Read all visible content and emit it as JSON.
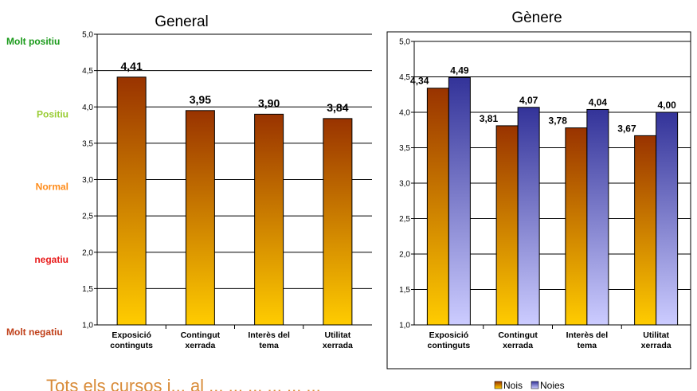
{
  "scale_labels": [
    {
      "text": "Molt positiu",
      "color": "#1a9a1a",
      "value": 5.0
    },
    {
      "text": "Positiu",
      "color": "#99cc33",
      "value": 4.0
    },
    {
      "text": "Normal",
      "color": "#ff8c1a",
      "value": 3.0
    },
    {
      "text": "negatiu",
      "color": "#e81c1c",
      "value": 2.0
    },
    {
      "text": "Molt negatiu",
      "color": "#c0401a",
      "value": 1.0
    }
  ],
  "caption": "Tots els cursos i... al ... ... ... ... ... ...",
  "chart_data": [
    {
      "type": "bar",
      "title": "General",
      "categories": [
        [
          "Exposició",
          "continguts"
        ],
        [
          "Contingut",
          "xerrada"
        ],
        [
          "Interès del",
          "tema"
        ],
        [
          "Utilitat",
          "xerrada"
        ]
      ],
      "tick_labels": [
        "1,0",
        "1,5",
        "2,0",
        "2,5",
        "3,0",
        "3,5",
        "4,0",
        "4,5",
        "5,0"
      ],
      "ylim": [
        1.0,
        5.0
      ],
      "grid": true,
      "series": [
        {
          "values": [
            4.41,
            3.95,
            3.9,
            3.84
          ],
          "labels": [
            "4,41",
            "3,95",
            "3,90",
            "3,84"
          ],
          "color_top": "#993300",
          "color_bottom": "#ffcc00"
        }
      ]
    },
    {
      "type": "bar",
      "title": "Gènere",
      "categories": [
        [
          "Exposició",
          "continguts"
        ],
        [
          "Contingut",
          "xerrada"
        ],
        [
          "Interès del",
          "tema"
        ],
        [
          "Utilitat",
          "xerrada"
        ]
      ],
      "tick_labels": [
        "1,0",
        "1,5",
        "2,0",
        "2,5",
        "3,0",
        "3,5",
        "4,0",
        "4,5",
        "5,0"
      ],
      "ylim": [
        1.0,
        5.0
      ],
      "grid": true,
      "legend_position": "bottom",
      "series": [
        {
          "name": "Nois",
          "values": [
            4.34,
            3.81,
            3.78,
            3.67
          ],
          "labels": [
            "4,34",
            "3,81",
            "3,78",
            "3,67"
          ],
          "color_top": "#993300",
          "color_bottom": "#ffcc00"
        },
        {
          "name": "Noies",
          "values": [
            4.49,
            4.07,
            4.04,
            4.0
          ],
          "labels": [
            "4,49",
            "4,07",
            "4,04",
            "4,00"
          ],
          "color_top": "#333399",
          "color_bottom": "#ccccff"
        }
      ]
    }
  ]
}
